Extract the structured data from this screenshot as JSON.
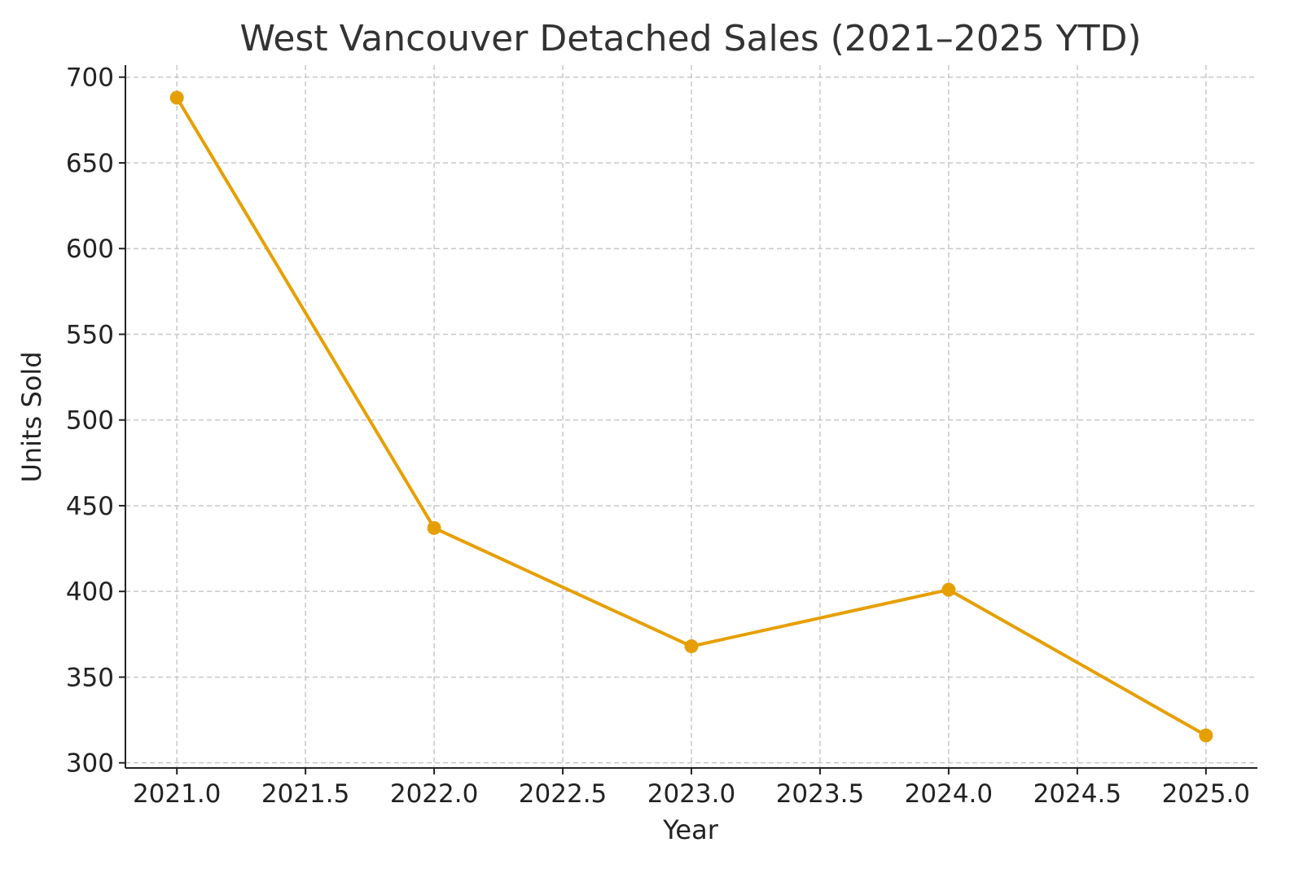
{
  "chart_data": {
    "type": "line",
    "title": "West Vancouver Detached Sales (2021–2025 YTD)",
    "xlabel": "Year",
    "ylabel": "Units Sold",
    "xlim": [
      2020.8,
      2025.2
    ],
    "ylim": [
      297,
      707
    ],
    "xticks": [
      2021.0,
      2021.5,
      2022.0,
      2022.5,
      2023.0,
      2023.5,
      2024.0,
      2024.5,
      2025.0
    ],
    "xtick_labels": [
      "2021.0",
      "2021.5",
      "2022.0",
      "2022.5",
      "2023.0",
      "2023.5",
      "2024.0",
      "2024.5",
      "2025.0"
    ],
    "yticks": [
      300,
      350,
      400,
      450,
      500,
      550,
      600,
      650,
      700
    ],
    "ytick_labels": [
      "300",
      "350",
      "400",
      "450",
      "500",
      "550",
      "600",
      "650",
      "700"
    ],
    "grid": true,
    "series": [
      {
        "color": "#E69F00",
        "marker": "circle",
        "x": [
          2021,
          2022,
          2023,
          2024,
          2025
        ],
        "y": [
          688,
          437,
          368,
          401,
          316
        ]
      }
    ]
  }
}
